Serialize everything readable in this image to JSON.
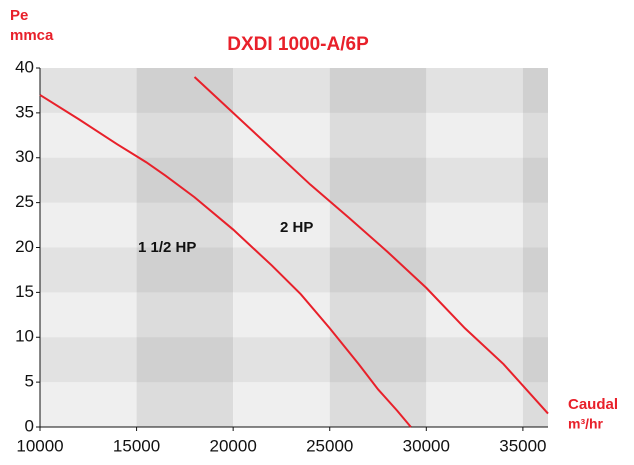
{
  "chart_data": {
    "type": "line",
    "title": "DXDI 1000-A/6P",
    "y_label": [
      "Pe",
      "mmca"
    ],
    "x_label": [
      "Caudal",
      "m³/hr"
    ],
    "xlim": [
      10000,
      36300
    ],
    "xticks": [
      10000,
      15000,
      20000,
      25000,
      30000,
      35000
    ],
    "ylim": [
      0,
      40
    ],
    "yticks": [
      0,
      5,
      10,
      15,
      20,
      25,
      30,
      35,
      40
    ],
    "grid": true,
    "series": [
      {
        "name": "1 1/2 HP",
        "color": "#e8202a",
        "x": [
          10000,
          12000,
          14000,
          15500,
          16500,
          18000,
          20000,
          22000,
          23500,
          25000,
          26500,
          27500,
          28500,
          29200
        ],
        "values": [
          37,
          34.3,
          31.5,
          29.5,
          28,
          25.6,
          22,
          18,
          14.8,
          11,
          7,
          4.2,
          1.8,
          0
        ]
      },
      {
        "name": "2 HP",
        "color": "#e8202a",
        "x": [
          18000,
          20000,
          22000,
          24000,
          26000,
          28000,
          30000,
          32000,
          34000,
          36300
        ],
        "values": [
          39,
          35,
          31,
          27,
          23.3,
          19.5,
          15.5,
          11,
          7,
          1.5
        ]
      }
    ]
  }
}
